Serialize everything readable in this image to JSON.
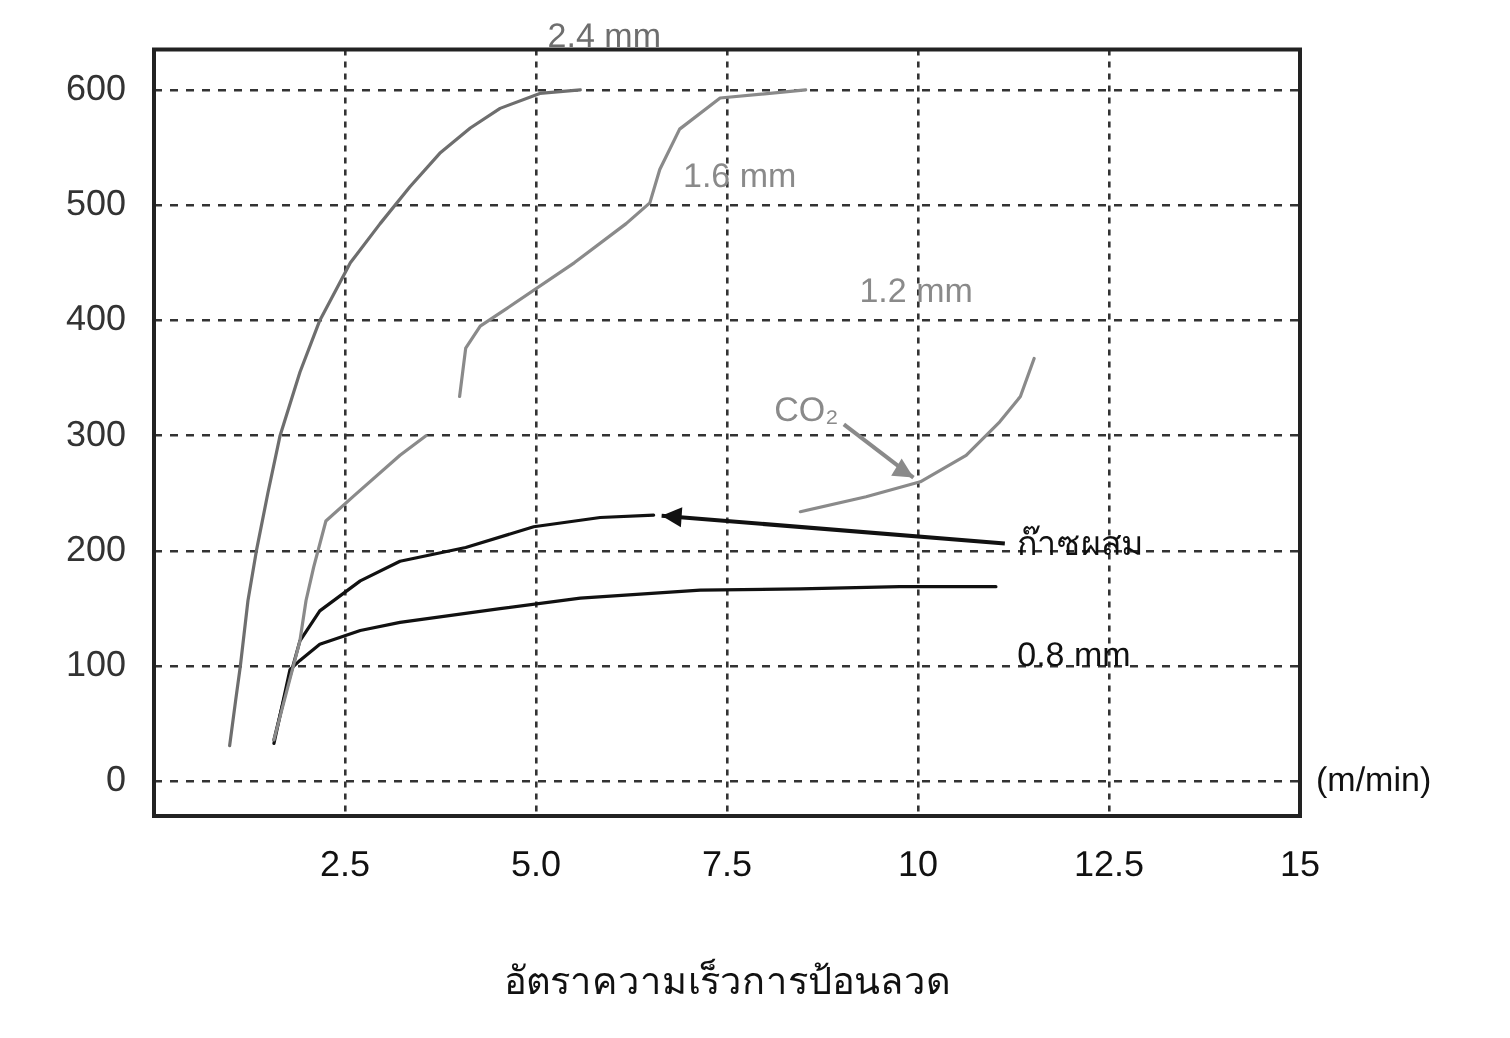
{
  "chart_data": {
    "type": "line",
    "xlabel": "อัตราความเร็วการป้อนลวด",
    "xlim": [
      0,
      15
    ],
    "xticks": [
      2.5,
      {
        "value": 5,
        "label": "5.0"
      },
      7.5,
      10,
      12.5,
      15
    ],
    "ylim": [
      -30,
      635
    ],
    "yticks": [
      0,
      100,
      200,
      300,
      400,
      500,
      600
    ],
    "grid": true,
    "legend": false,
    "marker": "none",
    "line_style": "solid",
    "series": [
      {
        "name": "2.4 mm",
        "color": "#6e6e6e",
        "x": [
          0.99,
          1.07,
          1.13,
          1.23,
          1.34,
          1.49,
          1.65,
          1.91,
          2.17,
          2.57,
          2.96,
          3.35,
          3.74,
          4.14,
          4.53,
          5.05,
          5.58
        ],
        "values": [
          31,
          71,
          100,
          157,
          200,
          250,
          300,
          355,
          400,
          450,
          484,
          516,
          545,
          567,
          584,
          597,
          600
        ]
      },
      {
        "name": "1.6 mm",
        "color": "#8a8a8a",
        "x": [
          1.57,
          1.91,
          1.99,
          2.09,
          2.25,
          2.62,
          3.22,
          3.56,
          3.8,
          4.0,
          4.08,
          4.27,
          4.61,
          5.5,
          6.18,
          6.49,
          6.62,
          6.88,
          7.41,
          8.53
        ],
        "values": [
          36,
          122,
          157,
          186,
          226,
          248,
          283,
          300,
          null,
          334,
          376,
          395,
          410,
          450,
          484,
          502,
          531,
          566,
          593,
          600
        ]
      },
      {
        "name": "1.2 mm",
        "color": "#8a8a8a",
        "x": [
          8.46,
          9.32,
          10.03,
          10.63,
          11.07,
          11.34,
          11.52
        ],
        "values": [
          234,
          247,
          260,
          283,
          312,
          334,
          367
        ]
      },
      {
        "name": "ก๊าซผสม",
        "color": "#111111",
        "x": [
          1.57,
          1.73,
          1.91,
          2.17,
          2.7,
          3.22,
          4.08,
          4.97,
          5.84,
          6.54
        ],
        "values": [
          36,
          79,
          122,
          148,
          174,
          191,
          203,
          221,
          229,
          231
        ]
      },
      {
        "name": "0.8 mm",
        "color": "#111111",
        "x": [
          1.57,
          1.78,
          1.91,
          2.17,
          2.7,
          3.22,
          4.53,
          5.58,
          7.15,
          8.46,
          9.76,
          11.02
        ],
        "values": [
          33,
          97,
          105,
          119,
          131,
          138,
          150,
          159,
          166,
          167,
          169,
          169
        ]
      }
    ],
    "annotations": [
      {
        "text": "CO₂",
        "x": 10.03,
        "y": 260
      },
      "(m/min)"
    ]
  }
}
